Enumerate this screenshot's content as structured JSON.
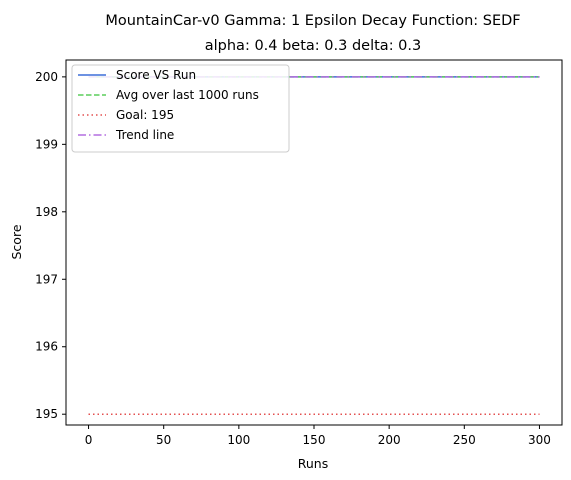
{
  "chart_data": {
    "type": "line",
    "title_line1": "MountainCar-v0 Gamma: 1 Epsilon Decay Function: SEDF",
    "title_line2": "alpha: 0.4  beta: 0.3  delta: 0.3",
    "xlabel": "Runs",
    "ylabel": "Score",
    "xlim": [
      -15,
      315
    ],
    "ylim": [
      194.84,
      200.25
    ],
    "xticks": [
      0,
      50,
      100,
      150,
      200,
      250,
      300
    ],
    "yticks": [
      195,
      196,
      197,
      198,
      199,
      200
    ],
    "legend_position": "upper-left",
    "series": [
      {
        "name": "Score VS Run",
        "color": "#3d6fd9",
        "style": "solid",
        "x": [
          0,
          300
        ],
        "y": [
          200,
          200
        ]
      },
      {
        "name": "Avg over last 1000 runs",
        "color": "#5ccd5c",
        "style": "dashed",
        "x": [
          0,
          300
        ],
        "y": [
          200,
          200
        ]
      },
      {
        "name": "Goal: 195",
        "color": "#e35050",
        "style": "dotted",
        "x": [
          0,
          300
        ],
        "y": [
          195,
          195
        ]
      },
      {
        "name": "Trend line",
        "color": "#b36ee0",
        "style": "dashdot",
        "x": [
          0,
          300
        ],
        "y": [
          200,
          200
        ]
      }
    ]
  }
}
